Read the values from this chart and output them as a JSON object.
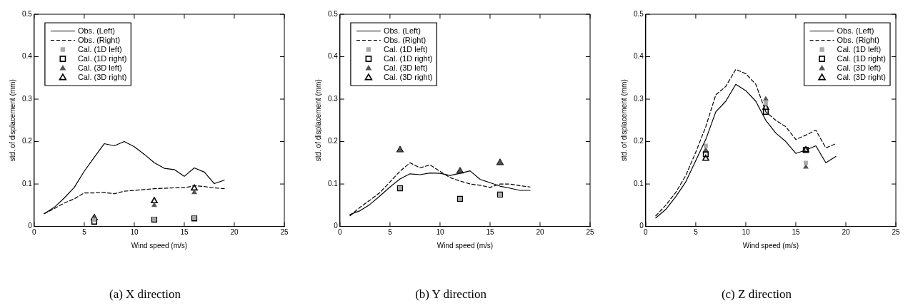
{
  "chart_data": [
    {
      "type": "line",
      "title": "(a) X direction",
      "xlabel": "Wind speed (m/s)",
      "ylabel": "std. of displacement (mm)",
      "xlim": [
        0,
        25
      ],
      "xticks": [
        0,
        5,
        10,
        15,
        20,
        25
      ],
      "ylim": [
        0,
        0.5
      ],
      "yticks": [
        0,
        0.1,
        0.2,
        0.3,
        0.4,
        0.5
      ],
      "grid": false,
      "legend": "top left",
      "x": [
        1,
        2,
        3,
        4,
        5,
        6,
        7,
        8,
        9,
        10,
        11,
        12,
        13,
        14,
        15,
        16,
        17,
        18,
        19
      ],
      "series": [
        {
          "name": "Obs. (Left)",
          "color": "#000000",
          "line_style": "solid",
          "marker": "none",
          "values": [
            0.03,
            0.045,
            0.067,
            0.092,
            0.13,
            0.163,
            0.195,
            0.19,
            0.2,
            0.188,
            0.17,
            0.15,
            0.137,
            0.134,
            0.118,
            0.138,
            0.128,
            0.101,
            0.109
          ]
        },
        {
          "name": "Obs. (Right)",
          "color": "#000000",
          "line_style": "dashed",
          "marker": "none",
          "values": [
            0.03,
            0.042,
            0.055,
            0.065,
            0.079,
            0.079,
            0.08,
            0.077,
            0.083,
            0.085,
            0.087,
            0.089,
            0.09,
            0.091,
            0.091,
            0.096,
            0.094,
            0.091,
            0.089
          ]
        },
        {
          "name": "Cal. (1D left)",
          "type": "scatter",
          "color": "#aaaaaa",
          "marker": "square",
          "x": [
            6,
            12,
            16
          ],
          "values": [
            0.015,
            0.017,
            0.02
          ]
        },
        {
          "name": "Cal. (1D right)",
          "type": "scatter",
          "color": "#000000",
          "marker": "square",
          "x": [
            6,
            12,
            16
          ],
          "values": [
            0.011,
            0.016,
            0.019
          ]
        },
        {
          "name": "Cal. (3D left)",
          "type": "scatter",
          "color": "#555555",
          "marker": "triangle",
          "x": [
            6,
            12,
            16
          ],
          "values": [
            0.02,
            0.05,
            0.08
          ]
        },
        {
          "name": "Cal. (3D right)",
          "type": "scatter",
          "color": "#000000",
          "marker": "triangle",
          "x": [
            6,
            12,
            16
          ],
          "values": [
            0.02,
            0.06,
            0.09
          ]
        }
      ]
    },
    {
      "type": "line",
      "title": "(b) Y direction",
      "xlabel": "Wind speed (m/s)",
      "ylabel": "std. of displacement (mm)",
      "xlim": [
        0,
        25
      ],
      "xticks": [
        0,
        5,
        10,
        15,
        20,
        25
      ],
      "ylim": [
        0,
        0.5
      ],
      "yticks": [
        0,
        0.1,
        0.2,
        0.3,
        0.4,
        0.5
      ],
      "grid": false,
      "legend": "top left",
      "x": [
        1,
        2,
        3,
        4,
        5,
        6,
        7,
        8,
        9,
        10,
        11,
        12,
        13,
        14,
        15,
        16,
        17,
        18,
        19
      ],
      "series": [
        {
          "name": "Obs. (Left)",
          "color": "#000000",
          "line_style": "solid",
          "marker": "none",
          "values": [
            0.028,
            0.037,
            0.052,
            0.072,
            0.093,
            0.112,
            0.124,
            0.122,
            0.126,
            0.125,
            0.12,
            0.125,
            0.131,
            0.111,
            0.103,
            0.095,
            0.09,
            0.085,
            0.085
          ]
        },
        {
          "name": "Obs. (Right)",
          "color": "#000000",
          "line_style": "dashed",
          "marker": "none",
          "values": [
            0.025,
            0.045,
            0.062,
            0.08,
            0.105,
            0.13,
            0.15,
            0.138,
            0.145,
            0.13,
            0.115,
            0.107,
            0.1,
            0.097,
            0.092,
            0.1,
            0.1,
            0.096,
            0.093
          ]
        },
        {
          "name": "Cal. (1D left)",
          "type": "scatter",
          "color": "#aaaaaa",
          "marker": "square",
          "x": [
            6,
            12,
            16
          ],
          "values": [
            0.09,
            0.065,
            0.075
          ]
        },
        {
          "name": "Cal. (1D right)",
          "type": "scatter",
          "color": "#000000",
          "marker": "square",
          "x": [
            6,
            12,
            16
          ],
          "values": [
            0.09,
            0.065,
            0.075
          ]
        },
        {
          "name": "Cal. (3D left)",
          "type": "scatter",
          "color": "#555555",
          "marker": "triangle",
          "x": [
            6,
            12,
            16
          ],
          "values": [
            0.18,
            0.13,
            0.15
          ]
        },
        {
          "name": "Cal. (3D right)",
          "type": "scatter",
          "color": "#000000",
          "marker": "triangle",
          "x": [
            6,
            12,
            16
          ],
          "values": [
            0.18,
            0.13,
            0.15
          ]
        }
      ]
    },
    {
      "type": "line",
      "title": "(c) Z direction",
      "xlabel": "Wind speed (m/s)",
      "ylabel": "std. of displacement (mm)",
      "xlim": [
        0,
        25
      ],
      "xticks": [
        0,
        5,
        10,
        15,
        20,
        25
      ],
      "ylim": [
        0,
        0.5
      ],
      "yticks": [
        0,
        0.1,
        0.2,
        0.3,
        0.4,
        0.5
      ],
      "grid": false,
      "legend": "top right",
      "x": [
        1,
        2,
        3,
        4,
        5,
        6,
        7,
        8,
        9,
        10,
        11,
        12,
        13,
        14,
        15,
        16,
        17,
        18,
        19
      ],
      "series": [
        {
          "name": "Obs. (Left)",
          "color": "#000000",
          "line_style": "solid",
          "marker": "none",
          "values": [
            0.02,
            0.04,
            0.07,
            0.105,
            0.155,
            0.205,
            0.27,
            0.295,
            0.335,
            0.32,
            0.295,
            0.25,
            0.22,
            0.2,
            0.172,
            0.18,
            0.19,
            0.15,
            0.165
          ]
        },
        {
          "name": "Obs. (Right)",
          "color": "#000000",
          "line_style": "dashed",
          "marker": "none",
          "values": [
            0.025,
            0.05,
            0.08,
            0.12,
            0.175,
            0.235,
            0.31,
            0.33,
            0.37,
            0.36,
            0.335,
            0.27,
            0.25,
            0.235,
            0.205,
            0.215,
            0.227,
            0.185,
            0.195
          ]
        },
        {
          "name": "Cal. (1D left)",
          "type": "scatter",
          "color": "#aaaaaa",
          "marker": "square",
          "x": [
            6,
            12,
            16
          ],
          "values": [
            0.19,
            0.29,
            0.15
          ]
        },
        {
          "name": "Cal. (1D right)",
          "type": "scatter",
          "color": "#000000",
          "marker": "square",
          "x": [
            6,
            12,
            16
          ],
          "values": [
            0.17,
            0.27,
            0.18
          ]
        },
        {
          "name": "Cal. (3D left)",
          "type": "scatter",
          "color": "#555555",
          "marker": "triangle",
          "x": [
            6,
            12,
            16
          ],
          "values": [
            0.18,
            0.3,
            0.14
          ]
        },
        {
          "name": "Cal. (3D right)",
          "type": "scatter",
          "color": "#000000",
          "marker": "triangle",
          "x": [
            6,
            12,
            16
          ],
          "values": [
            0.16,
            0.28,
            0.18
          ]
        }
      ]
    }
  ]
}
